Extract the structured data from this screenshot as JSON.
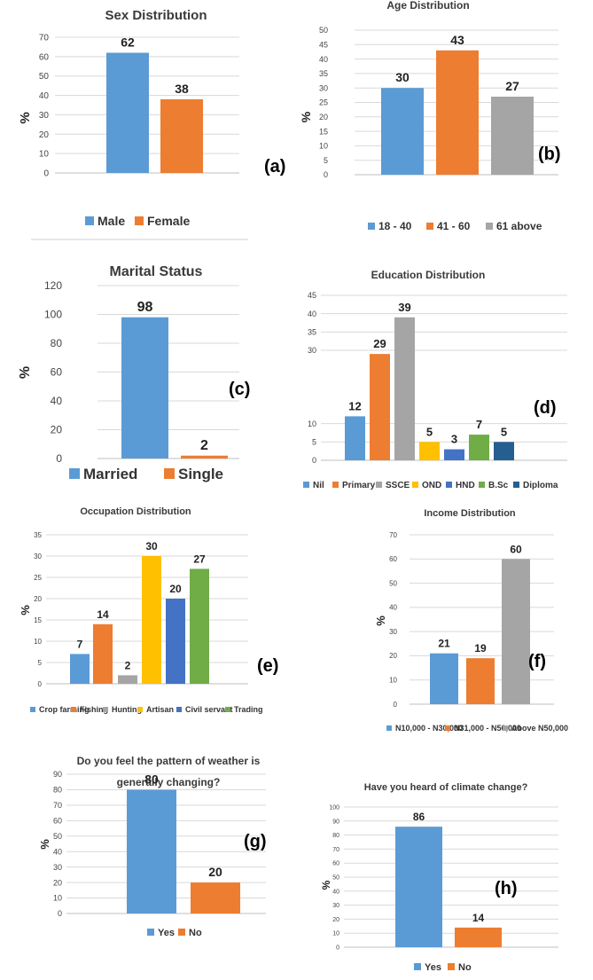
{
  "chart_data": [
    {
      "type": "bar",
      "panel_label": "(a)",
      "title": "Sex Distribution",
      "ylabel": "%",
      "ylim": [
        0,
        70
      ],
      "ticks": [
        0,
        10,
        20,
        30,
        40,
        50,
        60,
        70
      ],
      "series": [
        {
          "name": "Male",
          "value": 62,
          "color": "#5b9bd5"
        },
        {
          "name": "Female",
          "value": 38,
          "color": "#ed7d31"
        }
      ]
    },
    {
      "type": "bar",
      "panel_label": "(b)",
      "title": "Age Distribution",
      "ylabel": "%",
      "ylim": [
        0,
        50
      ],
      "ticks": [
        0,
        5,
        10,
        15,
        20,
        25,
        30,
        35,
        40,
        45,
        50
      ],
      "series": [
        {
          "name": "18 - 40",
          "value": 30,
          "color": "#5b9bd5"
        },
        {
          "name": "41 - 60",
          "value": 43,
          "color": "#ed7d31"
        },
        {
          "name": "61 above",
          "value": 27,
          "color": "#a5a5a5"
        }
      ]
    },
    {
      "type": "bar",
      "panel_label": "(c)",
      "title": "Marital Status",
      "ylabel": "%",
      "ylim": [
        0,
        120
      ],
      "ticks": [
        0,
        20,
        40,
        60,
        80,
        100,
        120
      ],
      "series": [
        {
          "name": "Married",
          "value": 98,
          "color": "#5b9bd5"
        },
        {
          "name": "Single",
          "value": 2,
          "color": "#ed7d31"
        }
      ]
    },
    {
      "type": "bar",
      "panel_label": "(d)",
      "title": "Education Distribution",
      "ylabel": "",
      "ylim": [
        0,
        45
      ],
      "ticks": [
        0,
        5,
        10,
        30,
        35,
        40,
        45
      ],
      "series": [
        {
          "name": "Nil",
          "value": 12,
          "color": "#5b9bd5"
        },
        {
          "name": "Primary",
          "value": 29,
          "color": "#ed7d31"
        },
        {
          "name": "SSCE",
          "value": 39,
          "color": "#a5a5a5"
        },
        {
          "name": "OND",
          "value": 5,
          "color": "#ffc000"
        },
        {
          "name": "HND",
          "value": 3,
          "color": "#4472c4"
        },
        {
          "name": "B.Sc",
          "value": 7,
          "color": "#70ad47"
        },
        {
          "name": "Diploma",
          "value": 5,
          "color": "#255e91"
        }
      ]
    },
    {
      "type": "bar",
      "panel_label": "(e)",
      "title": "Occupation Distribution",
      "ylabel": "%",
      "ylim": [
        0,
        35
      ],
      "ticks": [
        0,
        5,
        10,
        15,
        20,
        25,
        30,
        35
      ],
      "series": [
        {
          "name": "Crop farming",
          "value": 7,
          "color": "#5b9bd5"
        },
        {
          "name": "Fishing",
          "value": 14,
          "color": "#ed7d31"
        },
        {
          "name": "Hunting",
          "value": 2,
          "color": "#a5a5a5"
        },
        {
          "name": "Artisan",
          "value": 30,
          "color": "#ffc000"
        },
        {
          "name": "Civil servant",
          "value": 20,
          "color": "#4472c4"
        },
        {
          "name": "Trading",
          "value": 27,
          "color": "#70ad47"
        }
      ]
    },
    {
      "type": "bar",
      "panel_label": "(f)",
      "title": "Income Distribution",
      "ylabel": "%",
      "ylim": [
        0,
        70
      ],
      "ticks": [
        0,
        10,
        20,
        30,
        40,
        50,
        60,
        70
      ],
      "series": [
        {
          "name": "N10,000 - N30,000",
          "value": 21,
          "color": "#5b9bd5"
        },
        {
          "name": "N31,000 - N50,000",
          "value": 19,
          "color": "#ed7d31"
        },
        {
          "name": "Above N50,000",
          "value": 60,
          "color": "#a5a5a5"
        }
      ]
    },
    {
      "type": "bar",
      "panel_label": "(g)",
      "title": "Do you feel the pattern of weather is generally changing?",
      "ylabel": "%",
      "ylim": [
        0,
        90
      ],
      "ticks": [
        0,
        10,
        20,
        30,
        40,
        50,
        60,
        70,
        80,
        90
      ],
      "series": [
        {
          "name": "Yes",
          "value": 80,
          "color": "#5b9bd5"
        },
        {
          "name": "No",
          "value": 20,
          "color": "#ed7d31"
        }
      ]
    },
    {
      "type": "bar",
      "panel_label": "(h)",
      "title": "Have you heard of climate change?",
      "ylabel": "%",
      "ylim": [
        0,
        100
      ],
      "ticks": [
        0,
        10,
        20,
        30,
        40,
        50,
        60,
        70,
        80,
        90,
        100
      ],
      "series": [
        {
          "name": "Yes",
          "value": 86,
          "color": "#5b9bd5"
        },
        {
          "name": "No",
          "value": 14,
          "color": "#ed7d31"
        }
      ]
    }
  ]
}
